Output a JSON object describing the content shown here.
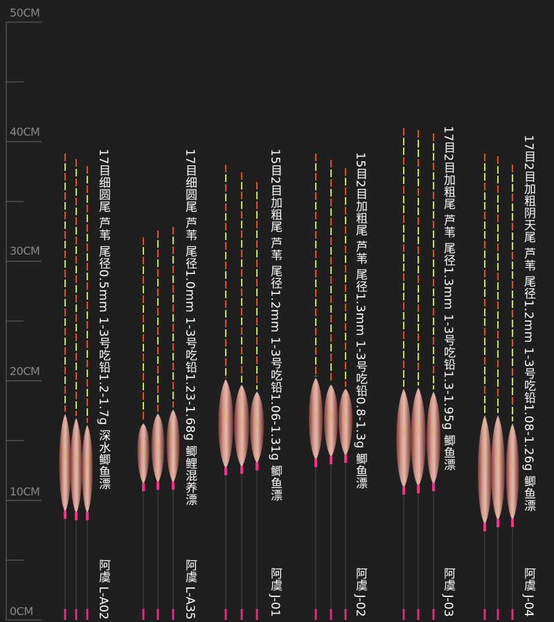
{
  "ruler": {
    "labels": [
      "50CM",
      "40CM",
      "30CM",
      "20CM",
      "10CM",
      "0CM"
    ]
  },
  "colors": {
    "background": "#1f1f1f",
    "tip_orange": "#e8501a",
    "tip_yellow": "#c8e63a",
    "body_pink": "#d99a8a",
    "bottom_pink": "#ff2d8a"
  },
  "products": [
    {
      "spec": "17目细圆尾 芦苇 尾径0.5mm 1-3号吃铅1.2-1.7g 深水鲫鱼漂",
      "model": "阿虞 L-A02"
    },
    {
      "spec": "17目细圆尾 芦苇 尾径1.0mm 1-3号吃铅1.23-1.68g 鲫鲤混养漂",
      "model": "阿虞 L-A35"
    },
    {
      "spec": "15目2目加粗尾 芦苇 尾径1.2mm 1-3号吃铅1.06-1.31g 鲫鱼漂",
      "model": "阿虞 J-01"
    },
    {
      "spec": "15目2目加粗尾 芦苇 尾径1.3mm 1-3号吃铅0.8-1.3g 鲫鱼漂",
      "model": "阿虞 J-02"
    },
    {
      "spec": "17目2目加粗尾 芦苇 尾径1.3mm 1-3号吃铅1.3-1.95g 鲫鱼漂",
      "model": "阿虞 J-03"
    },
    {
      "spec": "17目2目加粗阴天尾 芦苇 尾径1.2mm 1-3号吃铅1.08-1.26g 鲫鱼漂",
      "model": "阿虞 J-04"
    }
  ]
}
